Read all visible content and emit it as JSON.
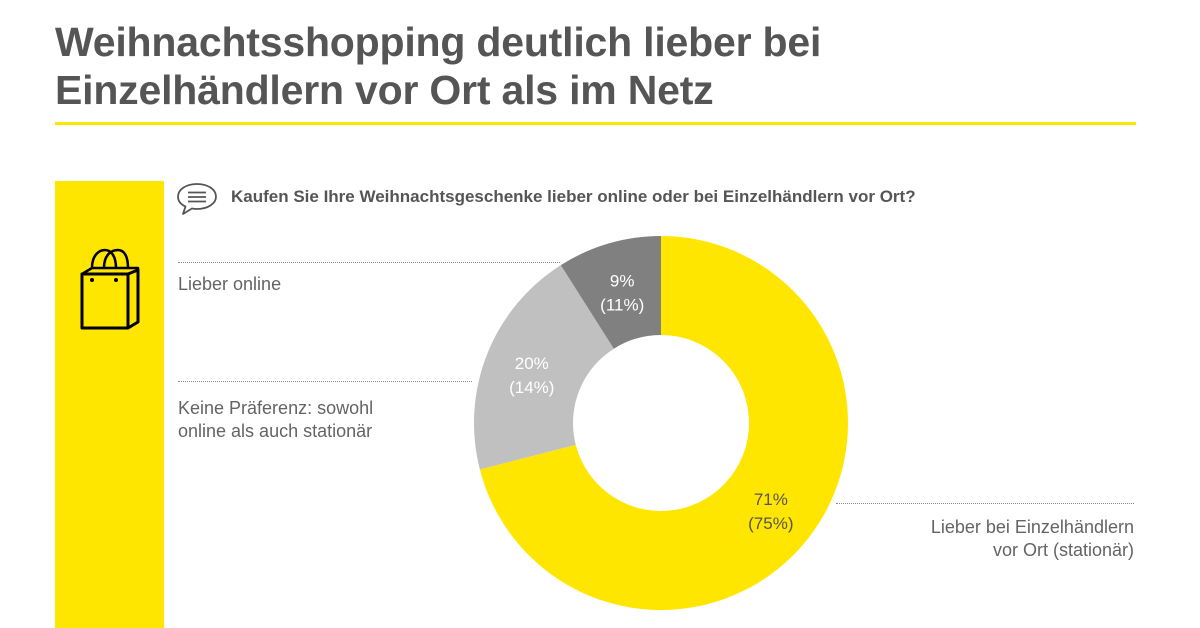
{
  "header": {
    "title_line1": "Weihnachtsshopping deutlich lieber bei",
    "title_line2": "Einzelhändlern vor Ort als im Netz"
  },
  "question": "Kaufen Sie Ihre Weihnachtsgeschenke lieber online oder bei Einzelhändlern vor Ort?",
  "colors": {
    "accent": "#ffe600",
    "slice_stationary": "#ffe600",
    "slice_no_preference": "#c0c0c0",
    "slice_online": "#808080",
    "text": "#646464"
  },
  "icons": [
    "shopping-bag-icon",
    "speech-bubble-icon"
  ],
  "chart_data": {
    "type": "pie",
    "donut": true,
    "start_angle_deg": 0,
    "direction": "clockwise",
    "slices": [
      {
        "key": "stationary",
        "label_line1": "Lieber bei Einzelhändlern",
        "label_line2": "vor Ort (stationär)",
        "value": 71,
        "value_text": "71%",
        "previous_text": "(75%)",
        "color": "#ffe600",
        "text_color": "#555555"
      },
      {
        "key": "no_preference",
        "label_line1": "Keine Präferenz: sowohl",
        "label_line2": "online als auch stationär",
        "value": 20,
        "value_text": "20%",
        "previous_text": "(14%)",
        "color": "#c0c0c0",
        "text_color": "#ffffff"
      },
      {
        "key": "online",
        "label_line1": "Lieber online",
        "label_line2": "",
        "value": 9,
        "value_text": "9%",
        "previous_text": "(11%)",
        "color": "#808080",
        "text_color": "#ffffff"
      }
    ]
  }
}
